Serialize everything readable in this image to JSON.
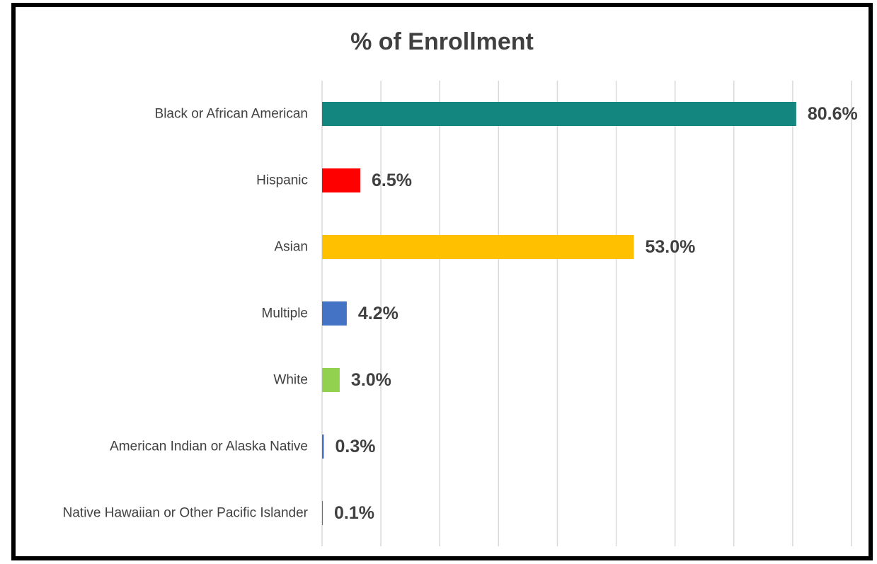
{
  "chart_data": {
    "type": "bar",
    "orientation": "horizontal",
    "title": "% of Enrollment",
    "xlabel": "",
    "ylabel": "",
    "xlim": [
      0,
      90
    ],
    "grid": true,
    "legend": "none",
    "categories": [
      "Black or African American",
      "Hispanic",
      "Asian",
      "Multiple",
      "White",
      "American Indian or Alaska Native",
      "Native Hawaiian or Other Pacific Islander"
    ],
    "values": [
      80.6,
      6.5,
      53.0,
      4.2,
      3.0,
      0.3,
      0.1
    ],
    "value_labels": [
      "80.6%",
      "6.5%",
      "53.0%",
      "4.2%",
      "3.0%",
      "0.3%",
      "0.1%"
    ],
    "colors": [
      "#12867f",
      "#ff0000",
      "#ffc000",
      "#4472c4",
      "#92d050",
      "#4472c4",
      "#4472c4"
    ]
  }
}
